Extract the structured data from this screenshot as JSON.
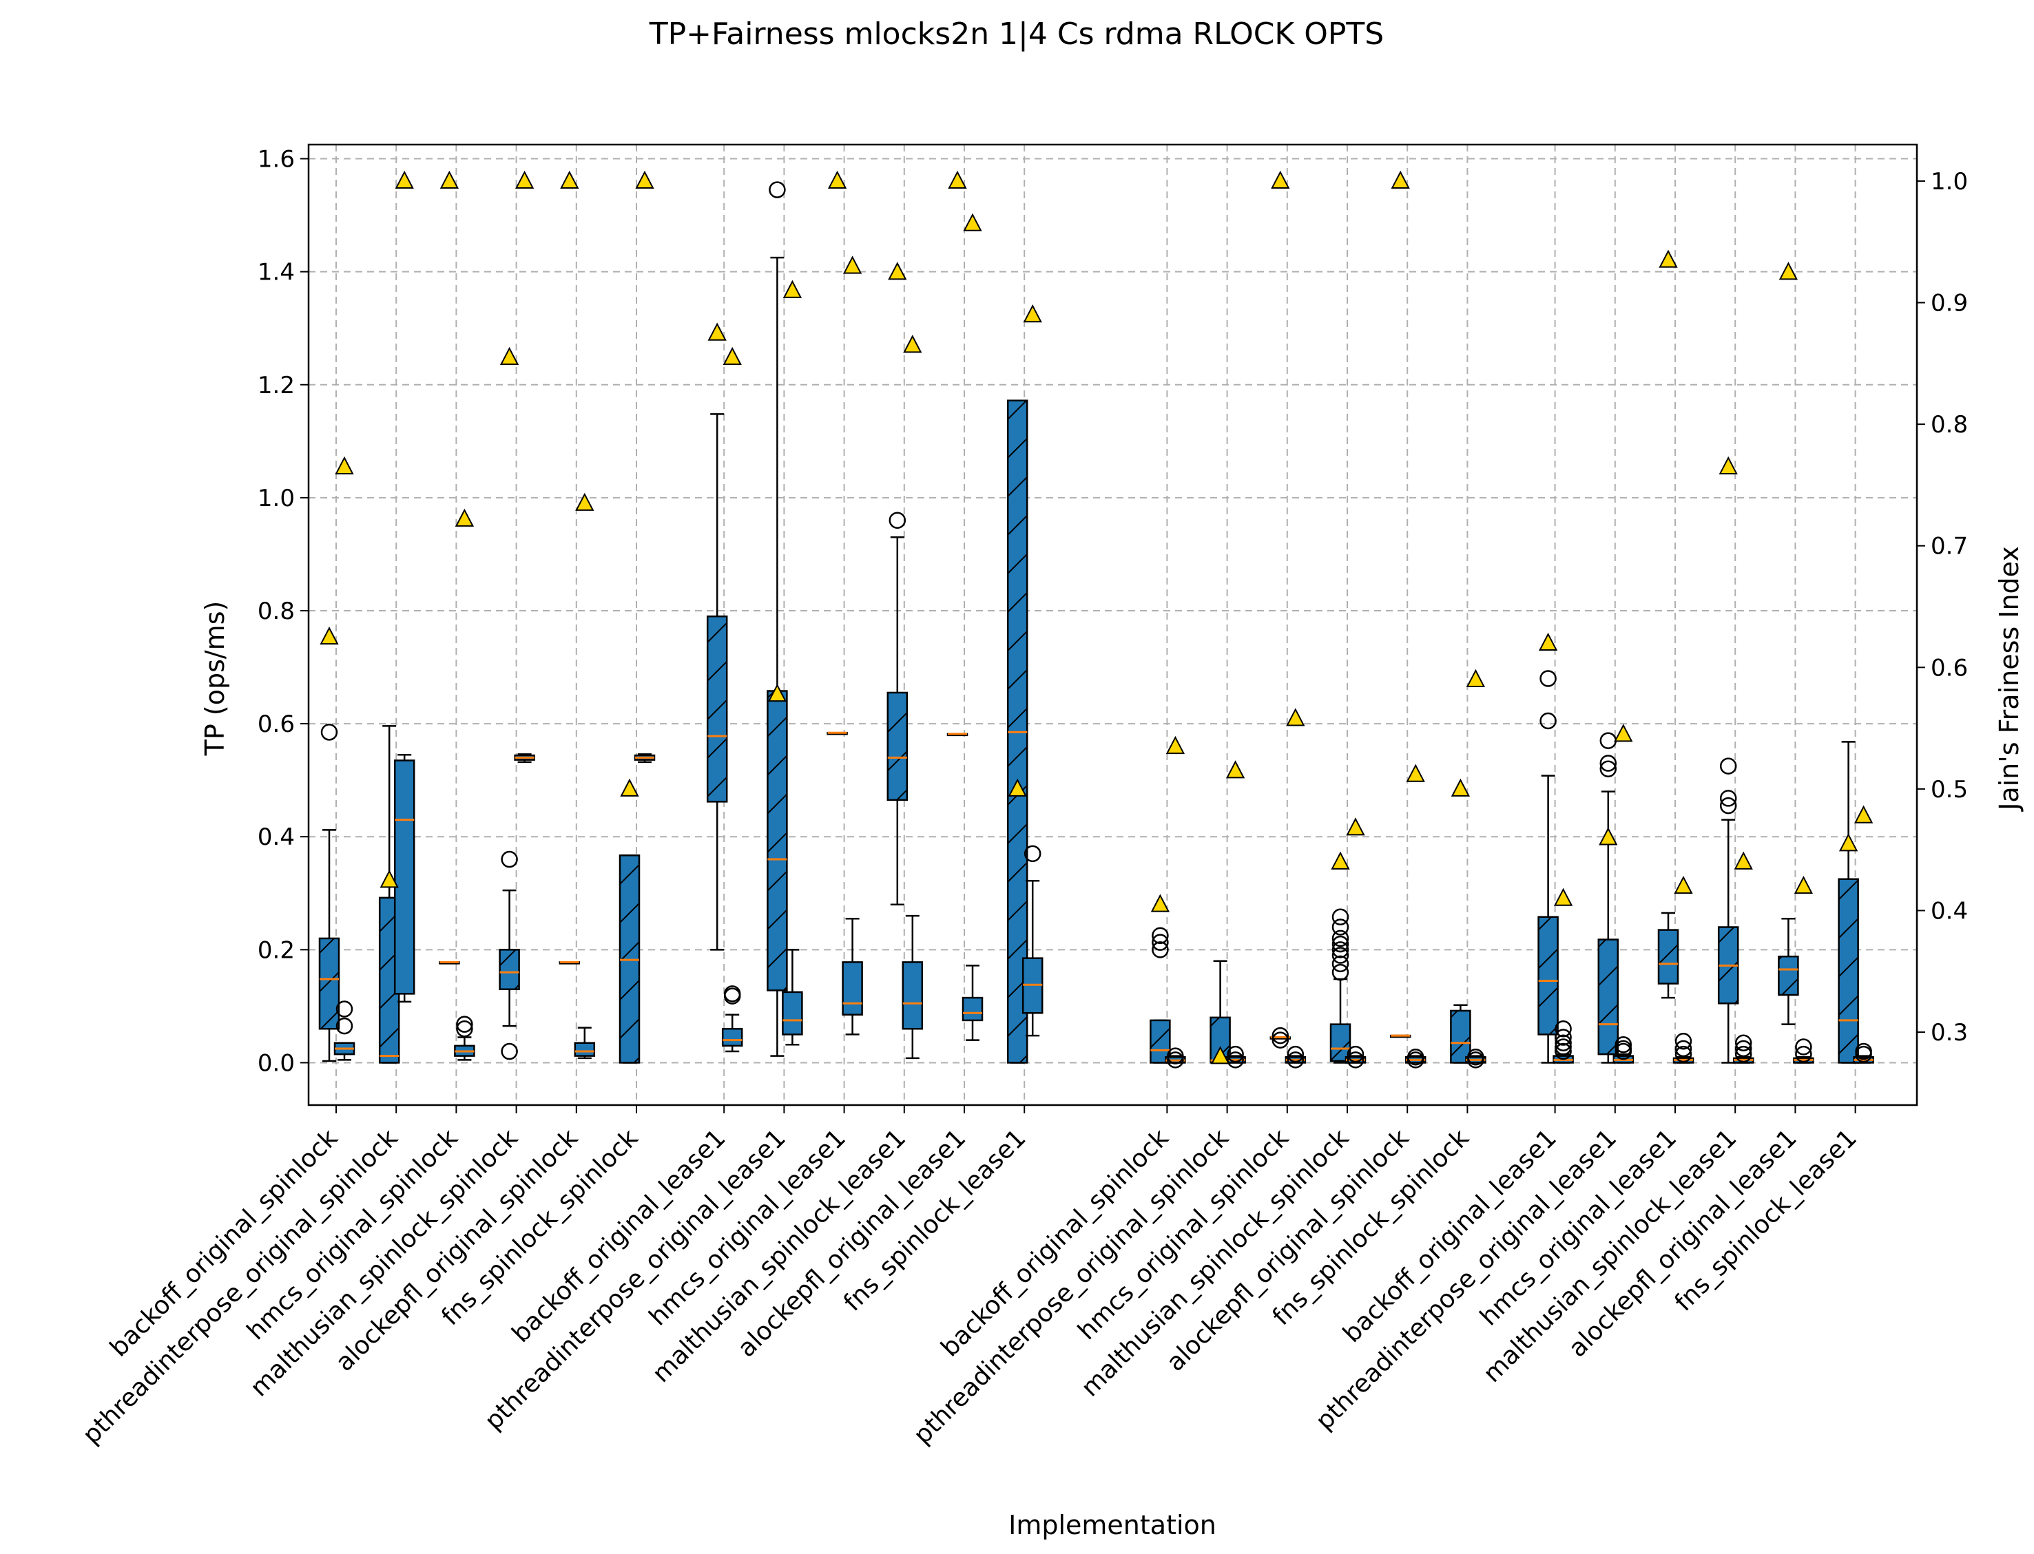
{
  "chart_data": {
    "type": "box",
    "title": "TP+Fairness mlocks2n 1|4 Cs rdma RLOCK OPTS",
    "xlabel": "Implementation",
    "ylabel": "TP (ops/ms)",
    "ylabel_right": "Jain's Frainess Index",
    "ylim": [
      -0.075,
      1.625
    ],
    "ylim_right": [
      0.24,
      1.03
    ],
    "yticks": [
      "0.0",
      "0.2",
      "0.4",
      "0.6",
      "0.8",
      "1.0",
      "1.2",
      "1.4",
      "1.6"
    ],
    "yticks_right": [
      "0.3",
      "0.4",
      "0.5",
      "0.6",
      "0.7",
      "0.8",
      "0.9",
      "1.0"
    ],
    "grid": true,
    "colors": {
      "box": "#1f77b4",
      "median": "#ff7f0e",
      "marker": "#ffd700",
      "grid": "#b0b0b0"
    },
    "categories": [
      "backoff_original_spinlock",
      "pthreadinterpose_original_spinlock",
      "hmcs_original_spinlock",
      "malthusian_spinlock_spinlock",
      "alockepfl_original_spinlock",
      "fns_spinlock_spinlock",
      "backoff_original_lease1",
      "pthreadinterpose_original_lease1",
      "hmcs_original_lease1",
      "malthusian_spinlock_lease1",
      "alockepfl_original_lease1",
      "fns_spinlock_lease1",
      "backoff_original_spinlock",
      "pthreadinterpose_original_spinlock",
      "hmcs_original_spinlock",
      "malthusian_spinlock_spinlock",
      "alockepfl_original_spinlock",
      "fns_spinlock_spinlock",
      "backoff_original_lease1",
      "pthreadinterpose_original_lease1",
      "hmcs_original_lease1",
      "malthusian_spinlock_lease1",
      "alockepfl_original_lease1",
      "fns_spinlock_lease1"
    ],
    "series": [
      {
        "style": "hatched",
        "boxes": [
          {
            "whislo": 0.003,
            "q1": 0.06,
            "med": 0.148,
            "q3": 0.22,
            "whishi": 0.412,
            "fliers": [
              0.585
            ],
            "fairness": 0.625
          },
          {
            "whislo": 0.0,
            "q1": 0.0,
            "med": 0.012,
            "q3": 0.292,
            "whishi": 0.596,
            "fliers": [],
            "fairness": 0.425
          },
          {
            "whislo": 0.178,
            "q1": 0.178,
            "med": 0.178,
            "q3": 0.178,
            "whishi": 0.178,
            "fliers": [],
            "fairness": 1.0
          },
          {
            "whislo": 0.065,
            "q1": 0.13,
            "med": 0.16,
            "q3": 0.2,
            "whishi": 0.305,
            "fliers": [
              0.36,
              0.02
            ],
            "fairness": 0.855
          },
          {
            "whislo": 0.178,
            "q1": 0.178,
            "med": 0.178,
            "q3": 0.178,
            "whishi": 0.178,
            "fliers": [],
            "fairness": 1.0
          },
          {
            "whislo": 0.0,
            "q1": 0.0,
            "med": 0.182,
            "q3": 0.367,
            "whishi": 0.367,
            "fliers": [],
            "fairness": 0.5
          },
          {
            "whislo": 0.2,
            "q1": 0.462,
            "med": 0.578,
            "q3": 0.79,
            "whishi": 1.148,
            "fliers": [],
            "fairness": 0.875
          },
          {
            "whislo": 0.012,
            "q1": 0.128,
            "med": 0.36,
            "q3": 0.658,
            "whishi": 1.425,
            "fliers": [
              1.545
            ],
            "fairness": 0.578
          },
          {
            "whislo": 0.584,
            "q1": 0.584,
            "med": 0.584,
            "q3": 0.584,
            "whishi": 0.584,
            "fliers": [],
            "fairness": 1.0
          },
          {
            "whislo": 0.28,
            "q1": 0.465,
            "med": 0.54,
            "q3": 0.655,
            "whishi": 0.93,
            "fliers": [
              0.96
            ],
            "fairness": 0.925
          },
          {
            "whislo": 0.582,
            "q1": 0.582,
            "med": 0.582,
            "q3": 0.582,
            "whishi": 0.582,
            "fliers": [],
            "fairness": 1.0
          },
          {
            "whislo": 0.0,
            "q1": 0.0,
            "med": 0.585,
            "q3": 1.172,
            "whishi": 1.172,
            "fliers": [],
            "fairness": 0.5
          },
          {
            "whislo": 0.0,
            "q1": 0.0,
            "med": 0.022,
            "q3": 0.075,
            "whishi": 0.075,
            "fliers": [
              0.2,
              0.213,
              0.225
            ],
            "fairness": 0.405
          },
          {
            "whislo": 0.0,
            "q1": 0.0,
            "med": 0.004,
            "q3": 0.08,
            "whishi": 0.18,
            "fliers": [],
            "fairness": 0.28
          },
          {
            "whislo": 0.045,
            "q1": 0.045,
            "med": 0.045,
            "q3": 0.045,
            "whishi": 0.045,
            "fliers": [
              0.04,
              0.048
            ],
            "fairness": 1.0
          },
          {
            "whislo": 0.0,
            "q1": 0.003,
            "med": 0.025,
            "q3": 0.068,
            "whishi": 0.148,
            "fliers": [
              0.16,
              0.175,
              0.19,
              0.2,
              0.21,
              0.22,
              0.24,
              0.258
            ],
            "fairness": 0.44
          },
          {
            "whislo": 0.048,
            "q1": 0.048,
            "med": 0.048,
            "q3": 0.048,
            "whishi": 0.048,
            "fliers": [],
            "fairness": 1.0
          },
          {
            "whislo": 0.0,
            "q1": 0.0,
            "med": 0.035,
            "q3": 0.092,
            "whishi": 0.102,
            "fliers": [],
            "fairness": 0.5
          },
          {
            "whislo": 0.0,
            "q1": 0.05,
            "med": 0.145,
            "q3": 0.258,
            "whishi": 0.508,
            "fliers": [
              0.605,
              0.68
            ],
            "fairness": 0.62
          },
          {
            "whislo": 0.0,
            "q1": 0.015,
            "med": 0.068,
            "q3": 0.218,
            "whishi": 0.48,
            "fliers": [
              0.52,
              0.53,
              0.57
            ],
            "fairness": 0.46
          },
          {
            "whislo": 0.115,
            "q1": 0.14,
            "med": 0.175,
            "q3": 0.235,
            "whishi": 0.265,
            "fliers": [],
            "fairness": 0.935
          },
          {
            "whislo": 0.0,
            "q1": 0.105,
            "med": 0.172,
            "q3": 0.24,
            "whishi": 0.43,
            "fliers": [
              0.455,
              0.468,
              0.525
            ],
            "fairness": 0.765
          },
          {
            "whislo": 0.068,
            "q1": 0.12,
            "med": 0.165,
            "q3": 0.188,
            "whishi": 0.255,
            "fliers": [],
            "fairness": 0.925
          },
          {
            "whislo": 0.0,
            "q1": 0.0,
            "med": 0.075,
            "q3": 0.325,
            "whishi": 0.568,
            "fliers": [],
            "fairness": 0.455
          }
        ]
      },
      {
        "style": "plain",
        "boxes": [
          {
            "whislo": 0.005,
            "q1": 0.015,
            "med": 0.025,
            "q3": 0.035,
            "whishi": 0.035,
            "fliers": [
              0.065,
              0.095
            ],
            "fairness": 0.765
          },
          {
            "whislo": 0.108,
            "q1": 0.122,
            "med": 0.43,
            "q3": 0.535,
            "whishi": 0.545,
            "fliers": [],
            "fairness": 1.0
          },
          {
            "whislo": 0.005,
            "q1": 0.012,
            "med": 0.02,
            "q3": 0.03,
            "whishi": 0.045,
            "fliers": [
              0.06,
              0.068
            ],
            "fairness": 0.722
          },
          {
            "whislo": 0.532,
            "q1": 0.536,
            "med": 0.54,
            "q3": 0.544,
            "whishi": 0.546,
            "fliers": [],
            "fairness": 1.0
          },
          {
            "whislo": 0.008,
            "q1": 0.012,
            "med": 0.02,
            "q3": 0.035,
            "whishi": 0.062,
            "fliers": [],
            "fairness": 0.735
          },
          {
            "whislo": 0.532,
            "q1": 0.536,
            "med": 0.54,
            "q3": 0.544,
            "whishi": 0.546,
            "fliers": [],
            "fairness": 1.0
          },
          {
            "whislo": 0.02,
            "q1": 0.03,
            "med": 0.04,
            "q3": 0.06,
            "whishi": 0.085,
            "fliers": [
              0.118,
              0.122
            ],
            "fairness": 0.855
          },
          {
            "whislo": 0.032,
            "q1": 0.05,
            "med": 0.075,
            "q3": 0.125,
            "whishi": 0.2,
            "fliers": [],
            "fairness": 0.91
          },
          {
            "whislo": 0.05,
            "q1": 0.085,
            "med": 0.105,
            "q3": 0.178,
            "whishi": 0.255,
            "fliers": [],
            "fairness": 0.93
          },
          {
            "whislo": 0.008,
            "q1": 0.06,
            "med": 0.105,
            "q3": 0.178,
            "whishi": 0.26,
            "fliers": [],
            "fairness": 0.865
          },
          {
            "whislo": 0.04,
            "q1": 0.075,
            "med": 0.088,
            "q3": 0.115,
            "whishi": 0.172,
            "fliers": [],
            "fairness": 0.965
          },
          {
            "whislo": 0.048,
            "q1": 0.088,
            "med": 0.138,
            "q3": 0.185,
            "whishi": 0.322,
            "fliers": [
              0.37
            ],
            "fairness": 0.89
          },
          {
            "whislo": 0.0,
            "q1": 0.0,
            "med": 0.004,
            "q3": 0.01,
            "whishi": 0.012,
            "fliers": [
              0.005,
              0.012
            ],
            "fairness": 0.535
          },
          {
            "whislo": 0.0,
            "q1": 0.0,
            "med": 0.005,
            "q3": 0.01,
            "whishi": 0.012,
            "fliers": [
              0.005,
              0.015
            ],
            "fairness": 0.515
          },
          {
            "whislo": 0.0,
            "q1": 0.0,
            "med": 0.005,
            "q3": 0.01,
            "whishi": 0.012,
            "fliers": [
              0.005,
              0.015
            ],
            "fairness": 0.558
          },
          {
            "whislo": 0.0,
            "q1": 0.0,
            "med": 0.005,
            "q3": 0.01,
            "whishi": 0.012,
            "fliers": [
              0.005,
              0.015
            ],
            "fairness": 0.468
          },
          {
            "whislo": 0.0,
            "q1": 0.0,
            "med": 0.005,
            "q3": 0.01,
            "whishi": 0.012,
            "fliers": [
              0.005,
              0.01
            ],
            "fairness": 0.512
          },
          {
            "whislo": 0.0,
            "q1": 0.0,
            "med": 0.005,
            "q3": 0.01,
            "whishi": 0.012,
            "fliers": [
              0.005,
              0.01
            ],
            "fairness": 0.59
          },
          {
            "whislo": 0.0,
            "q1": 0.0,
            "med": 0.005,
            "q3": 0.012,
            "whishi": 0.015,
            "fliers": [
              0.02,
              0.028,
              0.035,
              0.045,
              0.06
            ],
            "fairness": 0.41
          },
          {
            "whislo": 0.0,
            "q1": 0.0,
            "med": 0.005,
            "q3": 0.012,
            "whishi": 0.015,
            "fliers": [
              0.02,
              0.025,
              0.032
            ],
            "fairness": 0.545
          },
          {
            "whislo": 0.0,
            "q1": 0.0,
            "med": 0.005,
            "q3": 0.008,
            "whishi": 0.01,
            "fliers": [
              0.015,
              0.025,
              0.038
            ],
            "fairness": 0.42
          },
          {
            "whislo": 0.0,
            "q1": 0.0,
            "med": 0.005,
            "q3": 0.008,
            "whishi": 0.01,
            "fliers": [
              0.015,
              0.025,
              0.035
            ],
            "fairness": 0.44
          },
          {
            "whislo": 0.0,
            "q1": 0.0,
            "med": 0.005,
            "q3": 0.008,
            "whishi": 0.01,
            "fliers": [
              0.015,
              0.028
            ],
            "fairness": 0.42
          },
          {
            "whislo": 0.0,
            "q1": 0.0,
            "med": 0.005,
            "q3": 0.01,
            "whishi": 0.012,
            "fliers": [
              0.015,
              0.02
            ],
            "fairness": 0.478
          }
        ]
      }
    ]
  }
}
